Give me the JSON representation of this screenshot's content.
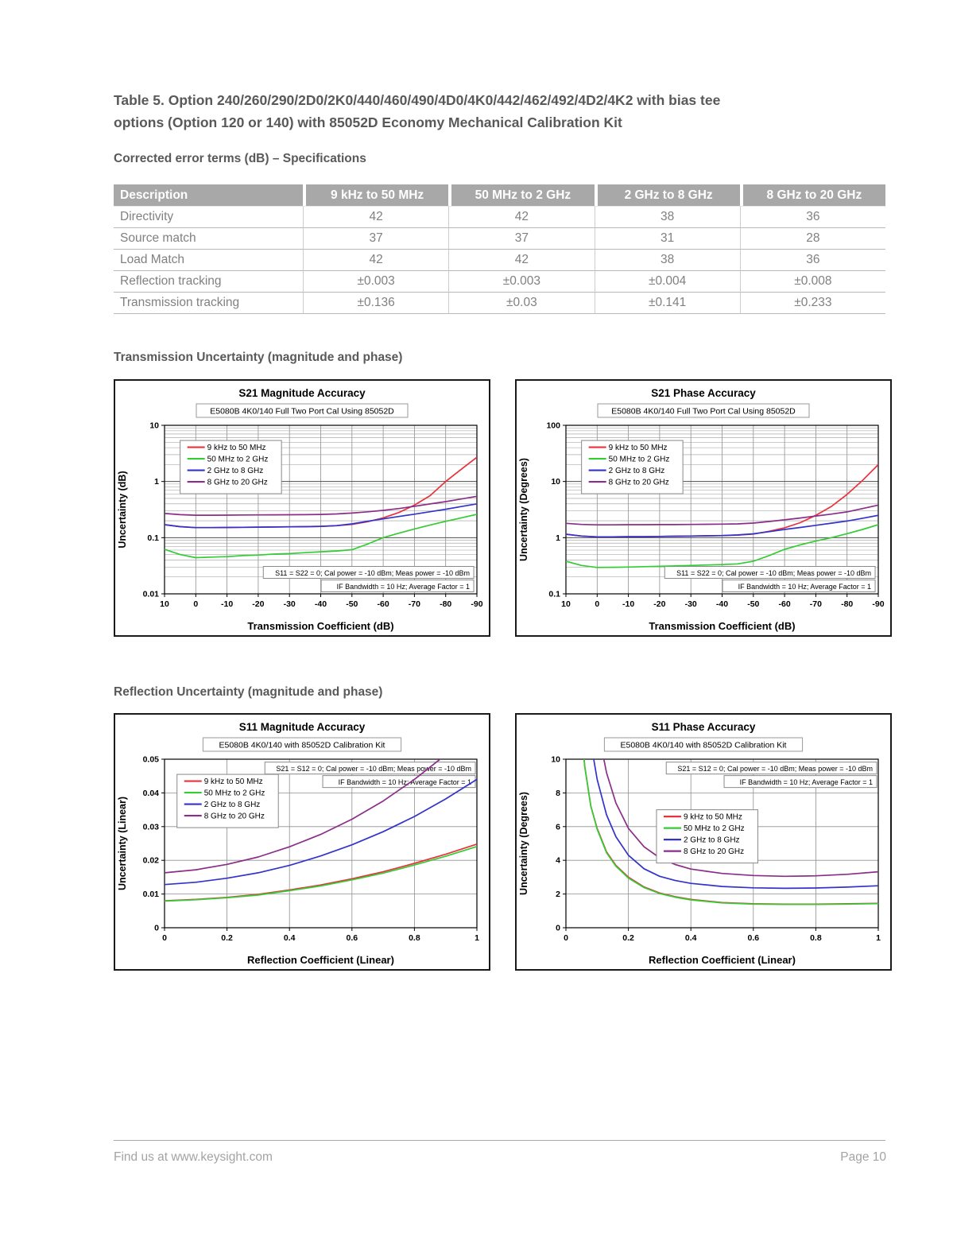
{
  "doc": {
    "title_line1": "Table 5. Option 240/260/290/2D0/2K0/440/460/490/4D0/4K0/442/462/492/4D2/4K2 with bias tee",
    "title_line2": "options (Option 120 or 140) with 85052D Economy Mechanical Calibration Kit",
    "corrected_heading": "Corrected error terms (dB) – Specifications",
    "transmission_heading": "Transmission Uncertainty (magnitude and phase)",
    "reflection_heading": "Reflection Uncertainty (magnitude and phase)",
    "footer_left": "Find us at www.keysight.com",
    "footer_right": "Page 10"
  },
  "table": {
    "columns": [
      "Description",
      "9 kHz to 50 MHz",
      "50 MHz to 2 GHz",
      "2 GHz to 8 GHz",
      "8 GHz to 20 GHz"
    ],
    "rows": [
      [
        "Directivity",
        "42",
        "42",
        "38",
        "36"
      ],
      [
        "Source match",
        "37",
        "37",
        "31",
        "28"
      ],
      [
        "Load Match",
        "42",
        "42",
        "38",
        "36"
      ],
      [
        "Reflection tracking",
        "±0.003",
        "±0.003",
        "±0.004",
        "±0.008"
      ],
      [
        "Transmission tracking",
        "±0.136",
        "±0.03",
        "±0.141",
        "±0.233"
      ]
    ],
    "header_bg": "#a8a8a8",
    "header_text_color": "#ffffff",
    "body_text_color": "#808080"
  },
  "chart_data": [
    {
      "type": "line",
      "title": "S21 Magnitude Accuracy",
      "subtitle": "E5080B 4K0/140 Full Two Port Cal Using 85052D",
      "xlabel": "Transmission Coefficient (dB)",
      "ylabel": "Uncertainty (dB)",
      "xscale": "linear",
      "yscale": "log",
      "xlim": [
        10,
        -90
      ],
      "ylim": [
        0.01,
        10
      ],
      "xticks": [
        10,
        0,
        -10,
        -20,
        -30,
        -40,
        -50,
        -60,
        -70,
        -80,
        -90
      ],
      "yticks": [
        10,
        1,
        0.1,
        0.01
      ],
      "grid": true,
      "legend_pos": {
        "x": 0.05,
        "y": 0.09
      },
      "annotations": [
        {
          "text": "S11 = S22 = 0; Cal power = -10 dBm; Meas power = -10 dBm",
          "ax": 0.99,
          "ay": 0.875
        },
        {
          "text": "IF Bandwidth = 10 Hz; Average Factor = 1",
          "ax": 0.99,
          "ay": 0.955
        }
      ],
      "x": [
        10,
        5,
        0,
        -5,
        -10,
        -15,
        -20,
        -25,
        -30,
        -35,
        -40,
        -45,
        -50,
        -55,
        -60,
        -65,
        -70,
        -75,
        -80,
        -85,
        -90
      ],
      "series": [
        {
          "name": "9 kHz to 50 MHz",
          "color": "#e8323c",
          "y": [
            0.17,
            0.157,
            0.151,
            0.151,
            0.152,
            0.153,
            0.154,
            0.155,
            0.156,
            0.157,
            0.159,
            0.163,
            0.172,
            0.192,
            0.225,
            0.28,
            0.38,
            0.56,
            1.0,
            1.65,
            2.7
          ]
        },
        {
          "name": "50 MHz to 2 GHz",
          "color": "#33cc33",
          "y": [
            0.062,
            0.05,
            0.044,
            0.045,
            0.046,
            0.048,
            0.049,
            0.051,
            0.052,
            0.054,
            0.056,
            0.058,
            0.061,
            0.077,
            0.1,
            0.12,
            0.143,
            0.168,
            0.195,
            0.225,
            0.26
          ]
        },
        {
          "name": "2 GHz to 8 GHz",
          "color": "#3333cc",
          "y": [
            0.17,
            0.157,
            0.151,
            0.151,
            0.152,
            0.153,
            0.154,
            0.155,
            0.156,
            0.157,
            0.159,
            0.164,
            0.176,
            0.196,
            0.216,
            0.238,
            0.262,
            0.29,
            0.32,
            0.358,
            0.4
          ]
        },
        {
          "name": "8 GHz to 20 GHz",
          "color": "#8a2e8a",
          "y": [
            0.27,
            0.257,
            0.251,
            0.251,
            0.252,
            0.253,
            0.254,
            0.255,
            0.256,
            0.257,
            0.259,
            0.264,
            0.274,
            0.289,
            0.306,
            0.33,
            0.362,
            0.398,
            0.438,
            0.488,
            0.545
          ]
        }
      ]
    },
    {
      "type": "line",
      "title": "S21 Phase Accuracy",
      "subtitle": "E5080B 4K0/140 Full Two Port Cal Using 85052D",
      "xlabel": "Transmission Coefficient (dB)",
      "ylabel": "Uncertainty (Degrees)",
      "xscale": "linear",
      "yscale": "log",
      "xlim": [
        10,
        -90
      ],
      "ylim": [
        0.1,
        100
      ],
      "xticks": [
        10,
        0,
        -10,
        -20,
        -30,
        -40,
        -50,
        -60,
        -70,
        -80,
        -90
      ],
      "yticks": [
        100,
        10,
        1,
        0.1
      ],
      "grid": true,
      "legend_pos": {
        "x": 0.05,
        "y": 0.09
      },
      "annotations": [
        {
          "text": "S11 = S22 = 0; Cal power = -10 dBm; Meas power = -10 dBm",
          "ax": 0.99,
          "ay": 0.875
        },
        {
          "text": "IF Bandwidth = 10 Hz; Average Factor = 1",
          "ax": 0.99,
          "ay": 0.955
        }
      ],
      "x": [
        10,
        5,
        0,
        -5,
        -10,
        -15,
        -20,
        -25,
        -30,
        -35,
        -40,
        -45,
        -50,
        -55,
        -60,
        -65,
        -70,
        -75,
        -80,
        -85,
        -90
      ],
      "series": [
        {
          "name": "9 kHz to 50 MHz",
          "color": "#e8323c",
          "y": [
            1.15,
            1.07,
            1.03,
            1.03,
            1.04,
            1.04,
            1.05,
            1.06,
            1.07,
            1.08,
            1.09,
            1.11,
            1.16,
            1.3,
            1.5,
            1.85,
            2.5,
            3.6,
            5.9,
            10.5,
            20.0
          ]
        },
        {
          "name": "50 MHz to 2 GHz",
          "color": "#33cc33",
          "y": [
            0.38,
            0.32,
            0.295,
            0.297,
            0.3,
            0.305,
            0.31,
            0.315,
            0.32,
            0.326,
            0.332,
            0.342,
            0.38,
            0.48,
            0.62,
            0.745,
            0.87,
            1.0,
            1.18,
            1.4,
            1.7
          ]
        },
        {
          "name": "2 GHz to 8 GHz",
          "color": "#3333cc",
          "y": [
            1.15,
            1.07,
            1.03,
            1.03,
            1.04,
            1.04,
            1.05,
            1.06,
            1.07,
            1.08,
            1.09,
            1.12,
            1.17,
            1.28,
            1.4,
            1.52,
            1.66,
            1.81,
            1.98,
            2.22,
            2.5
          ]
        },
        {
          "name": "8 GHz to 20 GHz",
          "color": "#8a2e8a",
          "y": [
            1.8,
            1.72,
            1.69,
            1.69,
            1.7,
            1.7,
            1.71,
            1.71,
            1.72,
            1.73,
            1.74,
            1.76,
            1.82,
            1.94,
            2.08,
            2.24,
            2.43,
            2.63,
            2.88,
            3.3,
            3.8
          ]
        }
      ]
    },
    {
      "type": "line",
      "title": "S11 Magnitude Accuracy",
      "subtitle": "E5080B 4K0/140 with 85052D Calibration Kit",
      "xlabel": "Reflection Coefficient (Linear)",
      "ylabel": "Uncertainty (Linear)",
      "xscale": "linear",
      "yscale": "linear",
      "xlim": [
        0,
        1
      ],
      "ylim": [
        0,
        0.05
      ],
      "xticks": [
        0,
        0.2,
        0.4,
        0.6,
        0.8,
        1
      ],
      "yticks": [
        0,
        0.01,
        0.02,
        0.03,
        0.04,
        0.05
      ],
      "grid": true,
      "legend_pos": {
        "x": 0.04,
        "y": 0.09
      },
      "annotations": [
        {
          "text": "S21 = S12 = 0; Cal power = -10 dBm; Meas power = -10 dBm",
          "ax": 0.995,
          "ay": 0.055
        },
        {
          "text": "IF Bandwidth = 10 Hz; Average Factor = 1",
          "ax": 0.995,
          "ay": 0.135
        }
      ],
      "x": [
        0,
        0.1,
        0.2,
        0.3,
        0.4,
        0.5,
        0.6,
        0.7,
        0.8,
        0.9,
        1.0
      ],
      "series": [
        {
          "name": "9 kHz to 50 MHz",
          "color": "#e8323c",
          "y": [
            0.008,
            0.0084,
            0.009,
            0.0099,
            0.0112,
            0.0127,
            0.0145,
            0.0166,
            0.0191,
            0.0218,
            0.0248
          ]
        },
        {
          "name": "50 MHz to 2 GHz",
          "color": "#33cc33",
          "y": [
            0.0079,
            0.0083,
            0.0089,
            0.0097,
            0.011,
            0.0124,
            0.0142,
            0.0162,
            0.0186,
            0.0212,
            0.0241
          ]
        },
        {
          "name": "2 GHz to 8 GHz",
          "color": "#3333cc",
          "y": [
            0.0128,
            0.0135,
            0.0147,
            0.0163,
            0.0185,
            0.0213,
            0.0246,
            0.0285,
            0.033,
            0.0382,
            0.044
          ]
        },
        {
          "name": "8 GHz to 20 GHz",
          "color": "#8a2e8a",
          "y": [
            0.0163,
            0.0172,
            0.0188,
            0.021,
            0.024,
            0.0277,
            0.0322,
            0.0376,
            0.044,
            0.0513,
            0.0595
          ]
        }
      ]
    },
    {
      "type": "line",
      "title": "S11 Phase Accuracy",
      "subtitle": "E5080B 4K0/140 with 85052D Calibration Kit",
      "xlabel": "Reflection Coefficient (Linear)",
      "ylabel": "Uncertainty (Degrees)",
      "xscale": "linear",
      "yscale": "linear",
      "xlim": [
        0,
        1
      ],
      "ylim": [
        0,
        10
      ],
      "xticks": [
        0,
        0.2,
        0.4,
        0.6,
        0.8,
        1
      ],
      "yticks": [
        0,
        2,
        4,
        6,
        8,
        10
      ],
      "grid": true,
      "legend_pos": {
        "x": 0.29,
        "y": 0.3
      },
      "annotations": [
        {
          "text": "S21 = S12 = 0; Cal power = -10 dBm; Meas power = -10 dBm",
          "ax": 0.995,
          "ay": 0.055
        },
        {
          "text": "IF Bandwidth = 10 Hz; Average Factor = 1",
          "ax": 0.995,
          "ay": 0.135
        }
      ],
      "x": [
        0.02,
        0.04,
        0.06,
        0.08,
        0.1,
        0.13,
        0.16,
        0.2,
        0.25,
        0.3,
        0.35,
        0.4,
        0.5,
        0.6,
        0.7,
        0.8,
        0.9,
        1.0
      ],
      "series": [
        {
          "name": "9 kHz to 50 MHz",
          "color": "#e8323c",
          "y": [
            28,
            14.5,
            9.6,
            7.2,
            5.9,
            4.5,
            3.7,
            3.0,
            2.42,
            2.06,
            1.84,
            1.68,
            1.49,
            1.42,
            1.4,
            1.4,
            1.42,
            1.45
          ]
        },
        {
          "name": "50 MHz to 2 GHz",
          "color": "#33cc33",
          "y": [
            28,
            14.5,
            9.6,
            7.2,
            5.85,
            4.45,
            3.65,
            2.95,
            2.38,
            2.03,
            1.81,
            1.65,
            1.47,
            1.4,
            1.38,
            1.38,
            1.4,
            1.43
          ]
        },
        {
          "name": "2 GHz to 8 GHz",
          "color": "#3333cc",
          "y": [
            44,
            22,
            14.8,
            11.0,
            8.8,
            6.7,
            5.4,
            4.3,
            3.5,
            3.05,
            2.8,
            2.63,
            2.45,
            2.37,
            2.34,
            2.36,
            2.41,
            2.49
          ]
        },
        {
          "name": "8 GHz to 20 GHz",
          "color": "#8a2e8a",
          "y": [
            60,
            30,
            20,
            15,
            12,
            9.2,
            7.4,
            5.9,
            4.8,
            4.15,
            3.75,
            3.48,
            3.22,
            3.1,
            3.05,
            3.08,
            3.17,
            3.32
          ]
        }
      ]
    }
  ]
}
